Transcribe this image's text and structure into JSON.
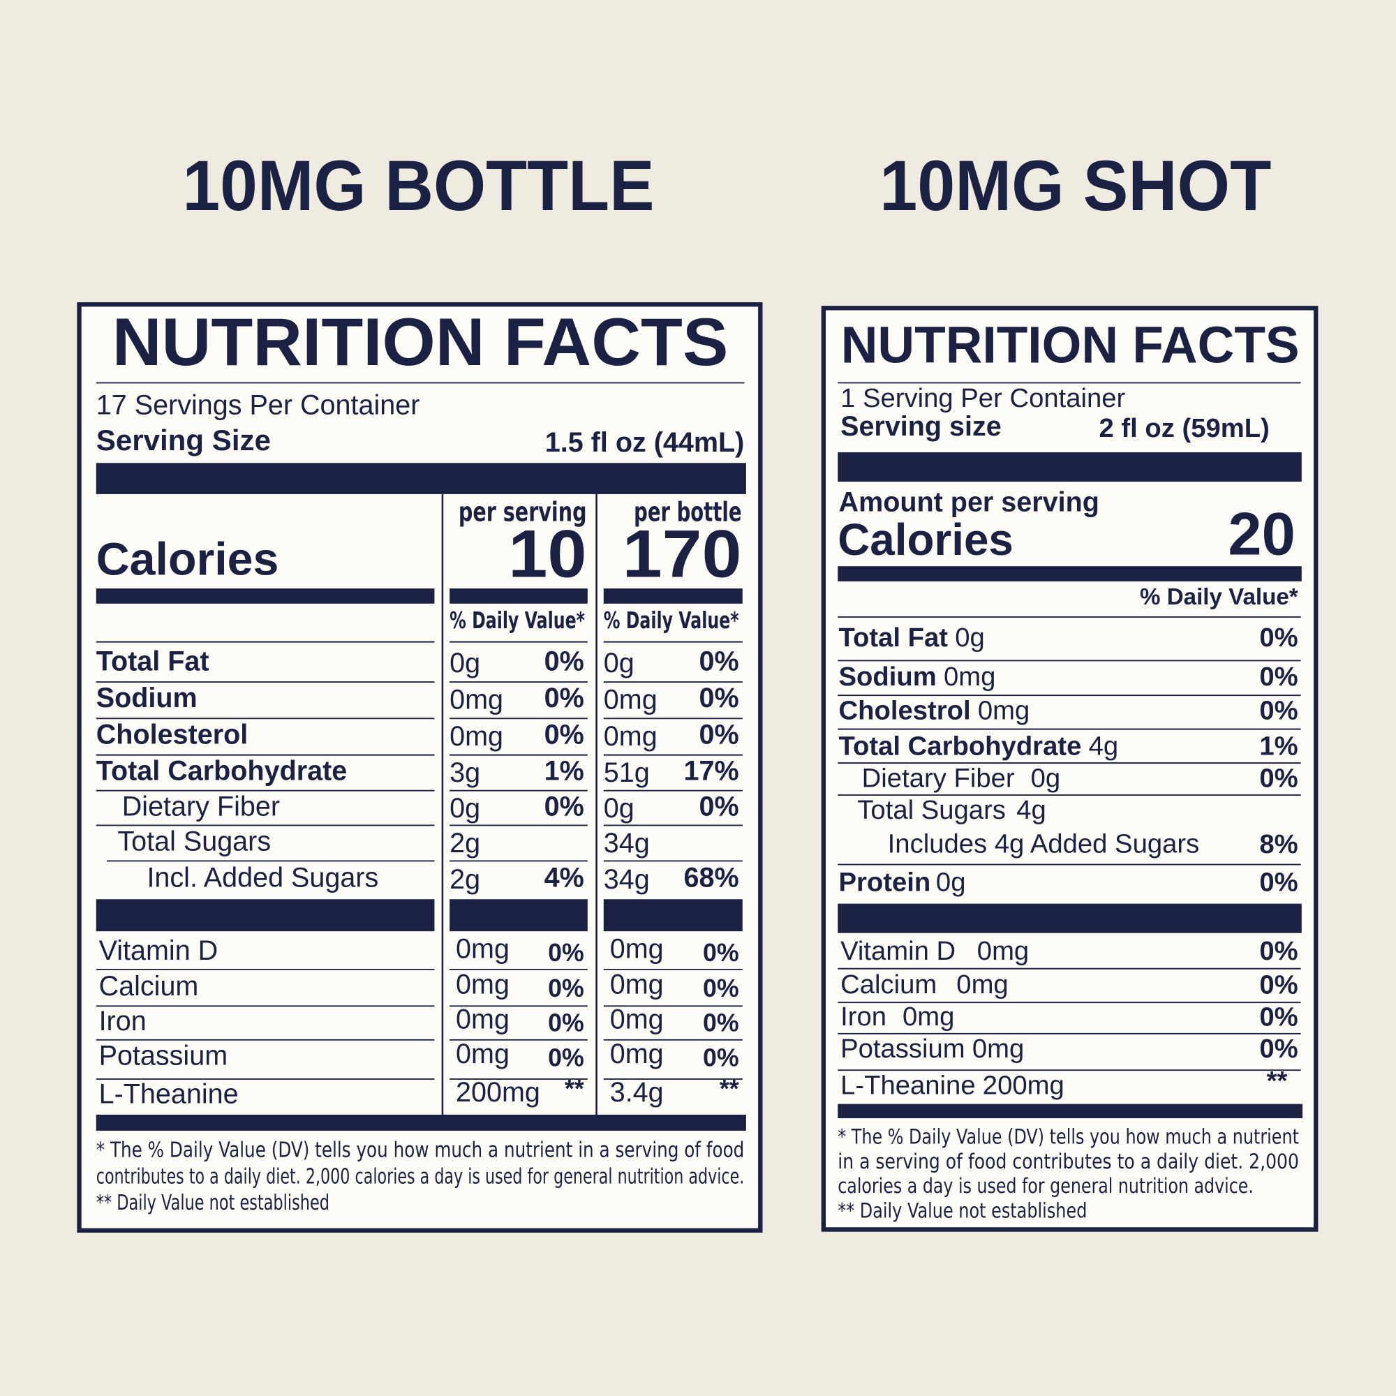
{
  "panels": [
    {
      "heading": "10MG BOTTLE",
      "label": {
        "title": "NUTRITION FACTS",
        "servings": "17 Servings Per Container",
        "serving_size_label": "Serving Size",
        "serving_size": "1.5 fl oz (44mL)",
        "calories_label": "Calories",
        "columns": [
          {
            "header": "per serving",
            "calories": 10
          },
          {
            "header": "per bottle",
            "calories": 170
          }
        ],
        "dv_header": "% Daily Value*",
        "nutrients": [
          {
            "name": "Total Fat",
            "per_serving": [
              "0g",
              "0%"
            ],
            "per_bottle": [
              "0g",
              "0%"
            ]
          },
          {
            "name": "Sodium",
            "per_serving": [
              "0mg",
              "0%"
            ],
            "per_bottle": [
              "0mg",
              "0%"
            ]
          },
          {
            "name": "Cholesterol",
            "per_serving": [
              "0mg",
              "0%"
            ],
            "per_bottle": [
              "0mg",
              "0%"
            ]
          },
          {
            "name": "Total Carbohydrate",
            "per_serving": [
              "3g",
              "1%"
            ],
            "per_bottle": [
              "51g",
              "17%"
            ]
          },
          {
            "name": "Dietary Fiber",
            "per_serving": [
              "0g",
              "0%"
            ],
            "per_bottle": [
              "0g",
              "0%"
            ]
          },
          {
            "name": "Total Sugars",
            "per_serving": [
              "2g"
            ],
            "per_bottle": [
              "34g"
            ]
          },
          {
            "name": "Incl. Added Sugars",
            "per_serving": [
              "2g",
              "4%"
            ],
            "per_bottle": [
              "34g",
              "68%"
            ]
          }
        ],
        "vitamins": [
          {
            "name": "Vitamin D",
            "per_serving": [
              "0mg",
              "0%"
            ],
            "per_bottle": [
              "0mg",
              "0%"
            ]
          },
          {
            "name": "Calcium",
            "per_serving": [
              "0mg",
              "0%"
            ],
            "per_bottle": [
              "0mg",
              "0%"
            ]
          },
          {
            "name": "Iron",
            "per_serving": [
              "0mg",
              "0%"
            ],
            "per_bottle": [
              "0mg",
              "0%"
            ]
          },
          {
            "name": "Potassium",
            "per_serving": [
              "0mg",
              "0%"
            ],
            "per_bottle": [
              "0mg",
              "0%"
            ]
          },
          {
            "name": "L-Theanine",
            "per_serving": [
              "200mg",
              "**"
            ],
            "per_bottle": [
              "3.4g",
              "**"
            ]
          }
        ],
        "footnote": [
          "* The % Daily Value (DV) tells you how much a nutrient in a serving of food",
          "contributes to a daily diet. 2,000 calories a day is used for general nutrition advice.",
          "** Daily Value not established"
        ]
      }
    },
    {
      "heading": "10MG SHOT",
      "label": {
        "title": "NUTRITION FACTS",
        "servings": "1 Serving Per Container",
        "serving_size_label": "Serving size",
        "serving_size": "2 fl oz (59mL)",
        "amount_label": "Amount per serving",
        "calories_label": "Calories",
        "calories": 20,
        "dv_header": "% Daily Value*",
        "nutrients": [
          {
            "name": "Total Fat",
            "amount": "0g",
            "dv": "0%"
          },
          {
            "name": "Sodium",
            "amount": "0mg",
            "dv": "0%"
          },
          {
            "name": "Cholestrol",
            "amount": "0mg",
            "dv": "0%"
          },
          {
            "name": "Total Carbohydrate",
            "amount": "4g",
            "dv": "1%"
          },
          {
            "name": "Dietary Fiber",
            "amount": "0g",
            "dv": "0%"
          },
          {
            "name": "Total Sugars",
            "amount": "4g"
          },
          {
            "name": "Includes 4g Added Sugars",
            "dv": "8%"
          },
          {
            "name": "Protein",
            "amount": "0g",
            "dv": "0%"
          }
        ],
        "vitamins": [
          {
            "name": "Vitamin D",
            "amount": "0mg",
            "dv": "0%"
          },
          {
            "name": "Calcium",
            "amount": "0mg",
            "dv": "0%"
          },
          {
            "name": "Iron",
            "amount": "0mg",
            "dv": "0%"
          },
          {
            "name": "Potassium",
            "amount": "0mg",
            "dv": "0%"
          },
          {
            "name": "L-Theanine",
            "amount": "200mg",
            "dv": "**"
          }
        ],
        "footnote": [
          "* The % Daily Value (DV) tells you how much a nutrient",
          "in a serving of food contributes to a daily diet. 2,000",
          "calories a day is used for general nutrition advice.",
          "** Daily Value not established"
        ]
      }
    }
  ]
}
